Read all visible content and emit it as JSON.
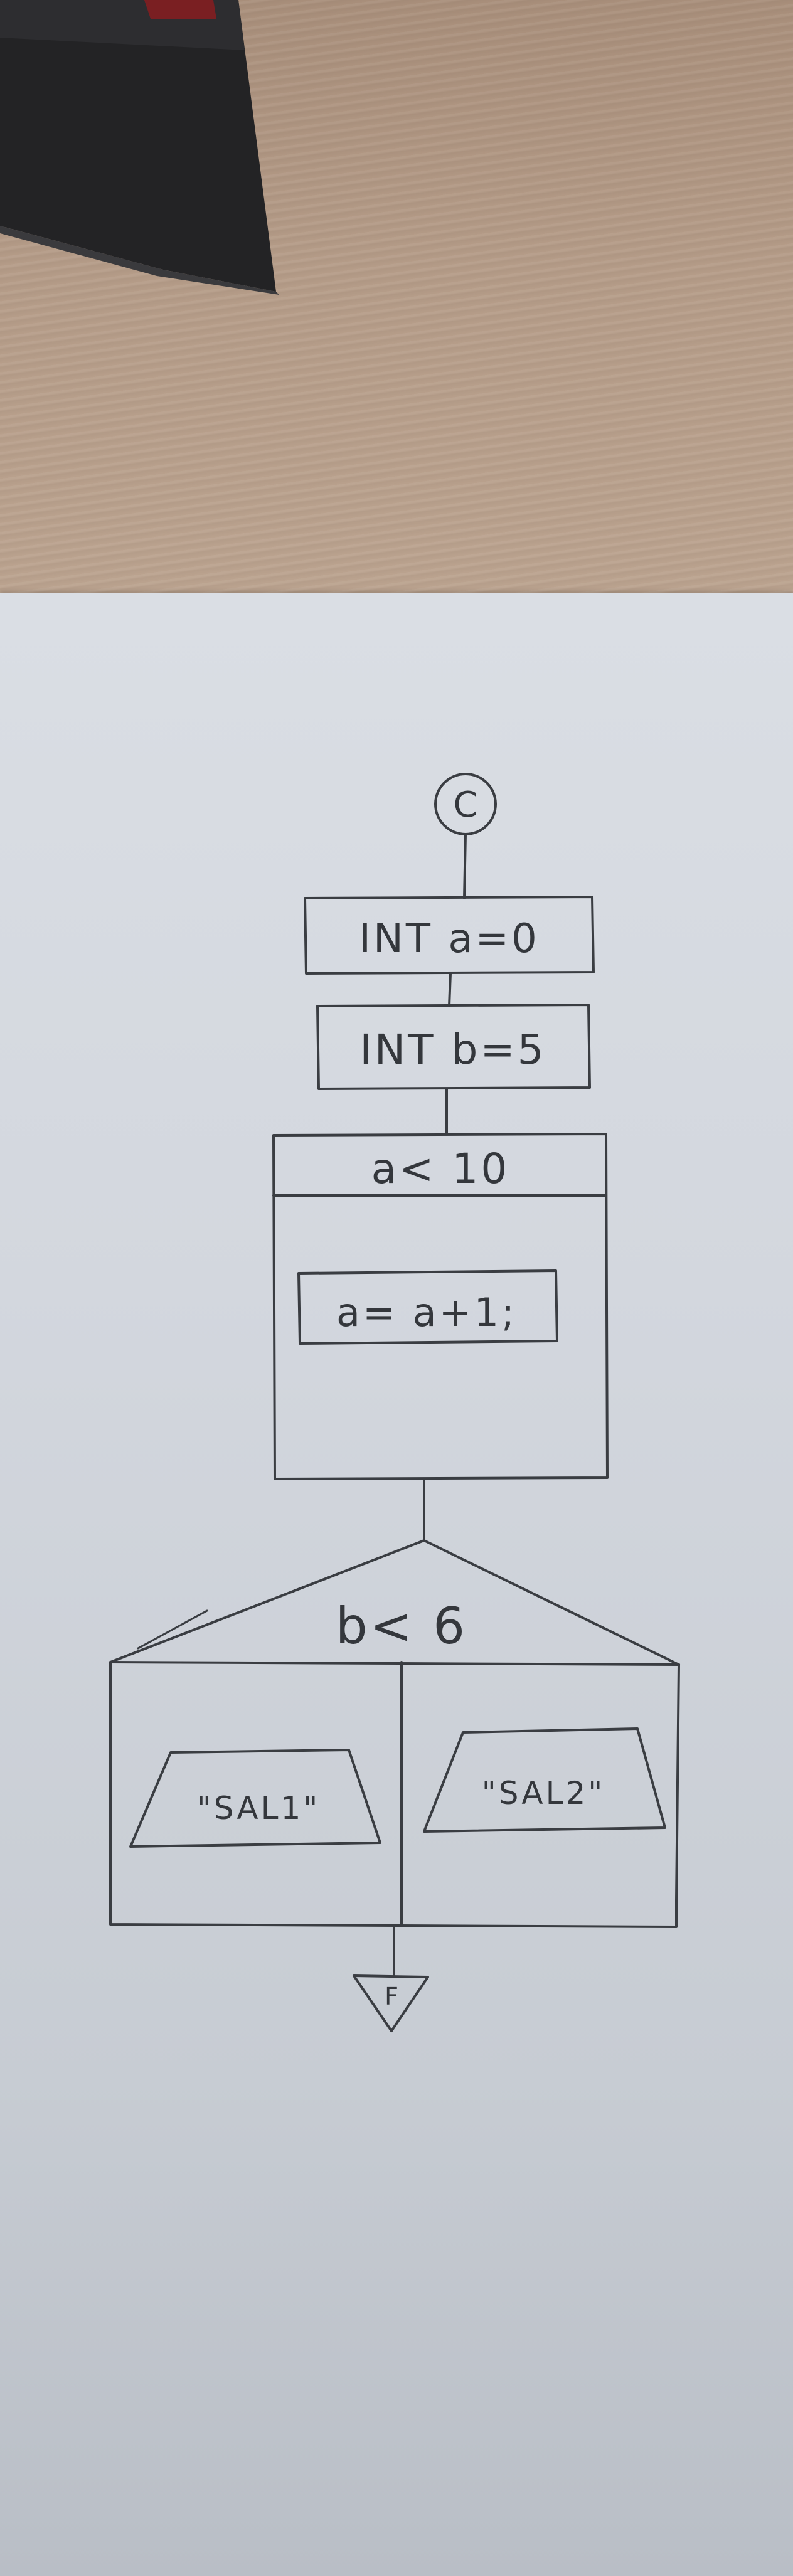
{
  "flowchart": {
    "start_connector": "C",
    "init_a": "INT a=0",
    "init_b": "INT b=5",
    "loop_condition": "a< 10",
    "loop_body": "a= a+1;",
    "decision_condition": "b< 6",
    "output_true": "\"SAL1\"",
    "output_false": "\"SAL2\"",
    "end_connector": "F"
  },
  "colors": {
    "ink": "#3a3d42",
    "paper": "#d6dae0",
    "background_wood": "#b39a86",
    "object_dark": "#1f1f21"
  }
}
